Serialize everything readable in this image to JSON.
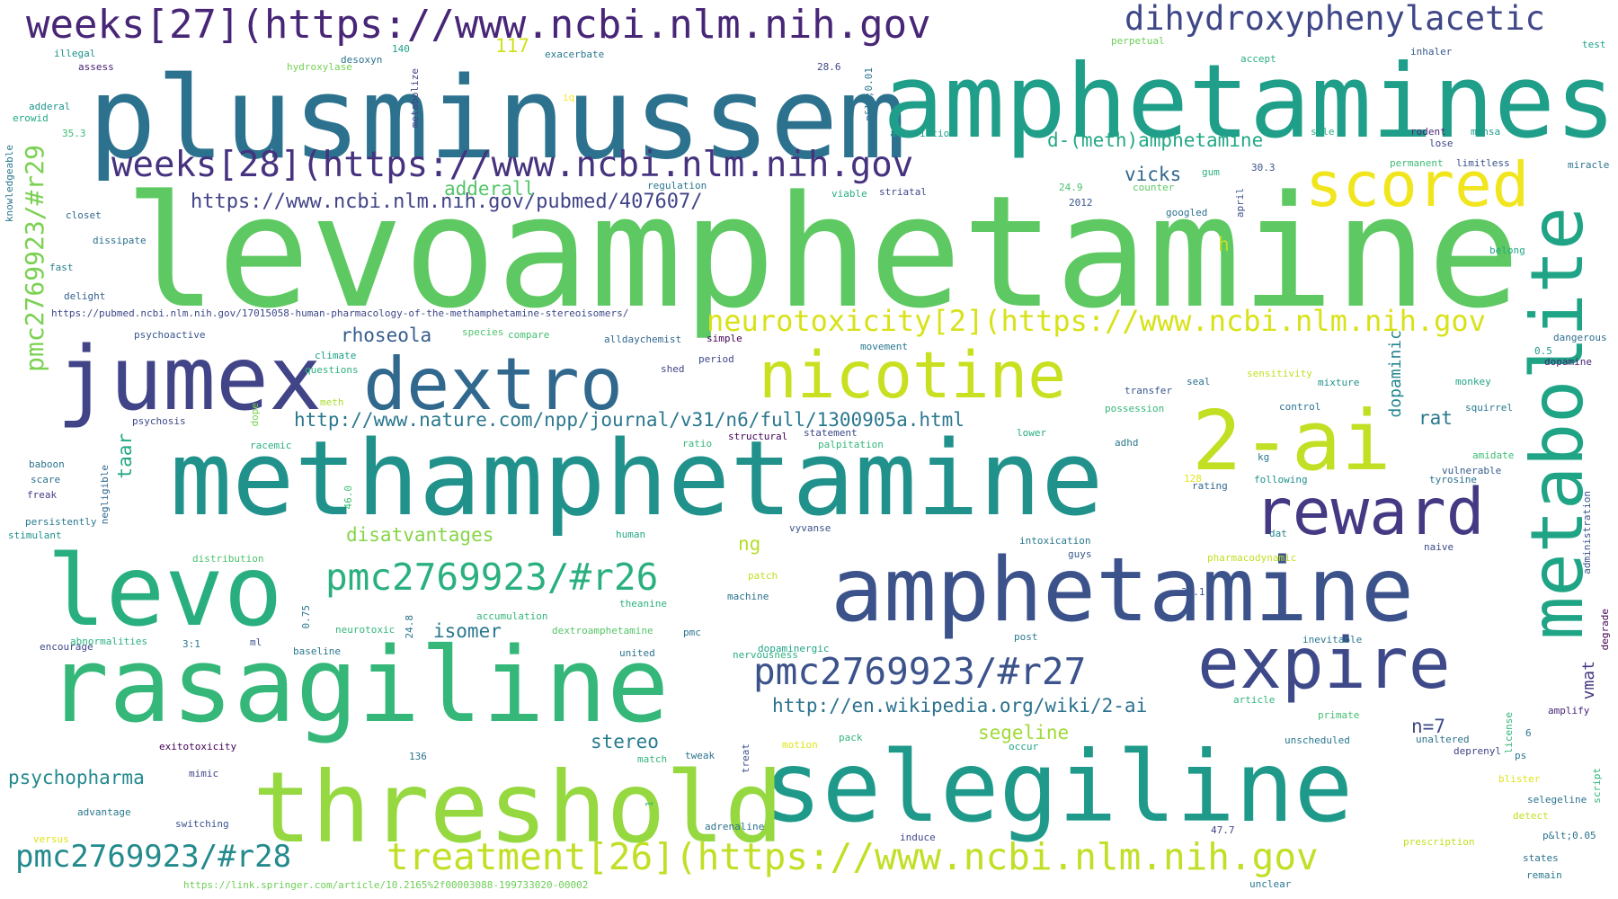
{
  "word_cloud": {
    "words": [
      {
        "text": "levoamphetamine",
        "color": "#5ec962"
      },
      {
        "text": "plusminussem",
        "color": "#2c728e"
      },
      {
        "text": "amphetamines",
        "color": "#1f9e89"
      },
      {
        "text": "methamphetamine",
        "color": "#21918c"
      },
      {
        "text": "selegiline",
        "color": "#1f9a8a"
      },
      {
        "text": "amphetamine",
        "color": "#3b528b"
      },
      {
        "text": "rasagiline",
        "color": "#35b779"
      },
      {
        "text": "threshold",
        "color": "#95d840"
      },
      {
        "text": "levo",
        "color": "#29af7f"
      },
      {
        "text": "jumex",
        "color": "#414487"
      },
      {
        "text": "dextro",
        "color": "#31688e"
      },
      {
        "text": "nicotine",
        "color": "#c8e020"
      },
      {
        "text": "2-ai",
        "color": "#c2df23"
      },
      {
        "text": "reward",
        "color": "#443983"
      },
      {
        "text": "expire",
        "color": "#3e4989"
      },
      {
        "text": "metabolite",
        "color": "#20a486"
      },
      {
        "text": "scored",
        "color": "#f1e51d"
      },
      {
        "text": "weeks[27](https://www.ncbi.nlm.nih.gov",
        "color": "#482677"
      },
      {
        "text": "weeks[28](https://www.ncbi.nlm.nih.gov",
        "color": "#46327e"
      },
      {
        "text": "dihydroxyphenylacetic",
        "color": "#3f4788"
      },
      {
        "text": "treatment[26](https://www.ncbi.nlm.nih.gov",
        "color": "#c0df25"
      },
      {
        "text": "pmc2769923/#r26",
        "color": "#2ab07f"
      },
      {
        "text": "pmc2769923/#r27",
        "color": "#3b528b"
      },
      {
        "text": "pmc2769923/#r28",
        "color": "#238a8d"
      },
      {
        "text": "pmc2769923/#r29",
        "color": "#7ad151"
      },
      {
        "text": "neurotoxicity[2](https://www.ncbi.nlm.nih.gov",
        "color": "#d8e219"
      },
      {
        "text": "https://www.ncbi.nlm.nih.gov/pubmed/407607/",
        "color": "#414487"
      },
      {
        "text": "http://www.nature.com/npp/journal/v31/n6/full/1300905a.html",
        "color": "#2a788e"
      },
      {
        "text": "http://en.wikipedia.org/wiki/2-ai",
        "color": "#2c728e"
      },
      {
        "text": "https://pubmed.ncbi.nlm.nih.gov/17015058-human-pharmacology-of-the-methamphetamine-stereoisomers/",
        "color": "#3e4989"
      },
      {
        "text": "https://link.springer.com/article/10.2165%2f00003088-199733020-00002",
        "color": "#6ece58"
      },
      {
        "text": "d-(meth)amphetamine",
        "color": "#22a884"
      },
      {
        "text": "adderall",
        "color": "#54c568"
      },
      {
        "text": "vicks",
        "color": "#31688e"
      },
      {
        "text": "rhoseola",
        "color": "#365c8d"
      },
      {
        "text": "dopaminic",
        "color": "#25858e"
      },
      {
        "text": "rat",
        "color": "#2a788e"
      },
      {
        "text": "taar",
        "color": "#22a884"
      },
      {
        "text": "disatvantages",
        "color": "#86d549"
      },
      {
        "text": "ng",
        "color": "#b5de2b"
      },
      {
        "text": "isomer",
        "color": "#2a788e"
      },
      {
        "text": "stereo",
        "color": "#287c8e"
      },
      {
        "text": "segeline",
        "color": "#a0da39"
      },
      {
        "text": "n=7",
        "color": "#3e4989"
      },
      {
        "text": "vmat",
        "color": "#443a83"
      },
      {
        "text": "psychopharma",
        "color": "#23898e"
      },
      {
        "text": "h",
        "color": "#c2df23"
      },
      {
        "text": "117",
        "color": "#d0e11c"
      },
      {
        "text": "illegal",
        "color": "#21918c"
      },
      {
        "text": "assess",
        "color": "#482173"
      },
      {
        "text": "adderal",
        "color": "#1f968b"
      },
      {
        "text": "erowid",
        "color": "#22a884"
      },
      {
        "text": "35.3",
        "color": "#3dbc74"
      },
      {
        "text": "knowledgeable",
        "color": "#2a788e"
      },
      {
        "text": "closet",
        "color": "#31688e"
      },
      {
        "text": "dissipate",
        "color": "#2d708e"
      },
      {
        "text": "fast",
        "color": "#26828e"
      },
      {
        "text": "delight",
        "color": "#355f8d"
      },
      {
        "text": "psychoactive",
        "color": "#39568c"
      },
      {
        "text": "species",
        "color": "#50c46a"
      },
      {
        "text": "compare",
        "color": "#44bf70"
      },
      {
        "text": "climate",
        "color": "#1fa088"
      },
      {
        "text": "questions",
        "color": "#2db27d"
      },
      {
        "text": "psychosis",
        "color": "#3e4989"
      },
      {
        "text": "meth",
        "color": "#addc30"
      },
      {
        "text": "dope",
        "color": "#7ad151"
      },
      {
        "text": "racemic",
        "color": "#2ab07f"
      },
      {
        "text": "baboon",
        "color": "#2c728e"
      },
      {
        "text": "scare",
        "color": "#2d708e"
      },
      {
        "text": "freak",
        "color": "#433e85"
      },
      {
        "text": "negligible",
        "color": "#31688e"
      },
      {
        "text": "46.0",
        "color": "#3dbc74"
      },
      {
        "text": "persistently",
        "color": "#2a788e"
      },
      {
        "text": "stimulant",
        "color": "#21918c"
      },
      {
        "text": "desoxyn",
        "color": "#2c728e"
      },
      {
        "text": "140",
        "color": "#1fa088"
      },
      {
        "text": "hydroxylase",
        "color": "#75d054"
      },
      {
        "text": "metabolize",
        "color": "#414487"
      },
      {
        "text": "iq",
        "color": "#fde725"
      },
      {
        "text": "exacerbate",
        "color": "#2a788e"
      },
      {
        "text": "28.6",
        "color": "#404688"
      },
      {
        "text": "p&lt;0.01",
        "color": "#2c728e"
      },
      {
        "text": "alleviation",
        "color": "#1f9e89"
      },
      {
        "text": "regulation",
        "color": "#2a788e"
      },
      {
        "text": "viable",
        "color": "#27ad81"
      },
      {
        "text": "striatal",
        "color": "#3e4a89"
      },
      {
        "text": "24.9",
        "color": "#4ac16d"
      },
      {
        "text": "2012",
        "color": "#39568c"
      },
      {
        "text": "counter",
        "color": "#5cc863"
      },
      {
        "text": "googled",
        "color": "#2c728e"
      },
      {
        "text": "april",
        "color": "#3b528b"
      },
      {
        "text": "gum",
        "color": "#2db27d"
      },
      {
        "text": "30.3",
        "color": "#3b528b"
      },
      {
        "text": "perpetual",
        "color": "#6ece58"
      },
      {
        "text": "accept",
        "color": "#2ab07f"
      },
      {
        "text": "inhaler",
        "color": "#38598c"
      },
      {
        "text": "test",
        "color": "#1fa188"
      },
      {
        "text": "sale",
        "color": "#25ab82"
      },
      {
        "text": "rodent",
        "color": "#482677"
      },
      {
        "text": "lose",
        "color": "#404688"
      },
      {
        "text": "mensa",
        "color": "#1f9a8a"
      },
      {
        "text": "permanent",
        "color": "#3dbc74"
      },
      {
        "text": "limitless",
        "color": "#3b528b"
      },
      {
        "text": "miracle",
        "color": "#2c728e"
      },
      {
        "text": "belong",
        "color": "#22a884"
      },
      {
        "text": "simple",
        "color": "#440154"
      },
      {
        "text": "alldaychemist",
        "color": "#31688e"
      },
      {
        "text": "movement",
        "color": "#2a788e"
      },
      {
        "text": "dangerous",
        "color": "#2e6e8e"
      },
      {
        "text": "period",
        "color": "#3e4989"
      },
      {
        "text": "shed",
        "color": "#414487"
      },
      {
        "text": "0.5",
        "color": "#1f9a8a"
      },
      {
        "text": "dopamine",
        "color": "#482475"
      },
      {
        "text": "sensitivity",
        "color": "#c2df23"
      },
      {
        "text": "transfer",
        "color": "#39568c"
      },
      {
        "text": "seal",
        "color": "#2c728e"
      },
      {
        "text": "mixture",
        "color": "#21918c"
      },
      {
        "text": "monkey",
        "color": "#20a486"
      },
      {
        "text": "possession",
        "color": "#35b779"
      },
      {
        "text": "control",
        "color": "#2c728e"
      },
      {
        "text": "squirrel",
        "color": "#2a788e"
      },
      {
        "text": "structural",
        "color": "#440154"
      },
      {
        "text": "statement",
        "color": "#3e4989"
      },
      {
        "text": "lower",
        "color": "#25ab82"
      },
      {
        "text": "ratio",
        "color": "#35b779"
      },
      {
        "text": "palpitation",
        "color": "#32b67a"
      },
      {
        "text": "adhd",
        "color": "#2a788e"
      },
      {
        "text": "kg",
        "color": "#2a788e"
      },
      {
        "text": "amidate",
        "color": "#3dbc74"
      },
      {
        "text": "vulnerable",
        "color": "#365c8d"
      },
      {
        "text": "128",
        "color": "#e5e419"
      },
      {
        "text": "rating",
        "color": "#31688e"
      },
      {
        "text": "following",
        "color": "#21918c"
      },
      {
        "text": "tyrosine",
        "color": "#2c728e"
      },
      {
        "text": "human",
        "color": "#22a884"
      },
      {
        "text": "vyvanse",
        "color": "#3b528b"
      },
      {
        "text": "dat",
        "color": "#26828e"
      },
      {
        "text": "intoxication",
        "color": "#2a788e"
      },
      {
        "text": "guys",
        "color": "#38598c"
      },
      {
        "text": "naive",
        "color": "#3e4989"
      },
      {
        "text": "administration",
        "color": "#3b528b"
      },
      {
        "text": "distribution",
        "color": "#4ac16d"
      },
      {
        "text": "patch",
        "color": "#bddf26"
      },
      {
        "text": "pharmacodynamic",
        "color": "#c2df23"
      },
      {
        "text": "theanine",
        "color": "#2db27d"
      },
      {
        "text": "machine",
        "color": "#2c728e"
      },
      {
        "text": "0.75",
        "color": "#2a788e"
      },
      {
        "text": "accumulation",
        "color": "#35b779"
      },
      {
        "text": "24.8",
        "color": "#2c728e"
      },
      {
        "text": "35.1",
        "color": "#3b528b"
      },
      {
        "text": "abnormalities",
        "color": "#2ab07f"
      },
      {
        "text": "encourage",
        "color": "#3e4989"
      },
      {
        "text": "3:1",
        "color": "#2a788e"
      },
      {
        "text": "ml",
        "color": "#3b528b"
      },
      {
        "text": "neurotoxic",
        "color": "#35b779"
      },
      {
        "text": "dextroamphetamine",
        "color": "#54c568"
      },
      {
        "text": "pmc",
        "color": "#2c728e"
      },
      {
        "text": "baseline",
        "color": "#2a788e"
      },
      {
        "text": "united",
        "color": "#2c728e"
      },
      {
        "text": "dopaminergic",
        "color": "#20a486"
      },
      {
        "text": "nervousness",
        "color": "#2ab07f"
      },
      {
        "text": "post",
        "color": "#2a788e"
      },
      {
        "text": "inevitable",
        "color": "#2a788e"
      },
      {
        "text": "degrade",
        "color": "#440154"
      },
      {
        "text": "article",
        "color": "#32b67a"
      },
      {
        "text": "primate",
        "color": "#44bf70"
      },
      {
        "text": "amplify",
        "color": "#482677"
      },
      {
        "text": "license",
        "color": "#35b779"
      },
      {
        "text": "6",
        "color": "#2c728e"
      },
      {
        "text": "exitotoxicity",
        "color": "#440154"
      },
      {
        "text": "136",
        "color": "#2c728e"
      },
      {
        "text": "match",
        "color": "#35b779"
      },
      {
        "text": "tweak",
        "color": "#2c728e"
      },
      {
        "text": "treat",
        "color": "#3b528b"
      },
      {
        "text": "motion",
        "color": "#dfe318"
      },
      {
        "text": "pack",
        "color": "#31b57b"
      },
      {
        "text": "occur",
        "color": "#20a486"
      },
      {
        "text": "unscheduled",
        "color": "#2a788e"
      },
      {
        "text": "unaltered",
        "color": "#2c728e"
      },
      {
        "text": "deprenyl",
        "color": "#414487"
      },
      {
        "text": "ps",
        "color": "#2a788e"
      },
      {
        "text": "script",
        "color": "#35b779"
      },
      {
        "text": "mimic",
        "color": "#404688"
      },
      {
        "text": "blister",
        "color": "#dfe318"
      },
      {
        "text": "selegeline",
        "color": "#2c728e"
      },
      {
        "text": "advantage",
        "color": "#2a788e"
      },
      {
        "text": "switching",
        "color": "#3b528b"
      },
      {
        "text": "1",
        "color": "#35b779"
      },
      {
        "text": "adrenaline",
        "color": "#2c728e"
      },
      {
        "text": "detect",
        "color": "#c2df23"
      },
      {
        "text": "47.7",
        "color": "#414487"
      },
      {
        "text": "induce",
        "color": "#3e4989"
      },
      {
        "text": "versus",
        "color": "#dfe318"
      },
      {
        "text": "p&lt;0.05",
        "color": "#2c728e"
      },
      {
        "text": "prescription",
        "color": "#c2df23"
      },
      {
        "text": "states",
        "color": "#2c728e"
      },
      {
        "text": "remain",
        "color": "#2a788e"
      },
      {
        "text": "unclear",
        "color": "#2a788e"
      }
    ]
  }
}
